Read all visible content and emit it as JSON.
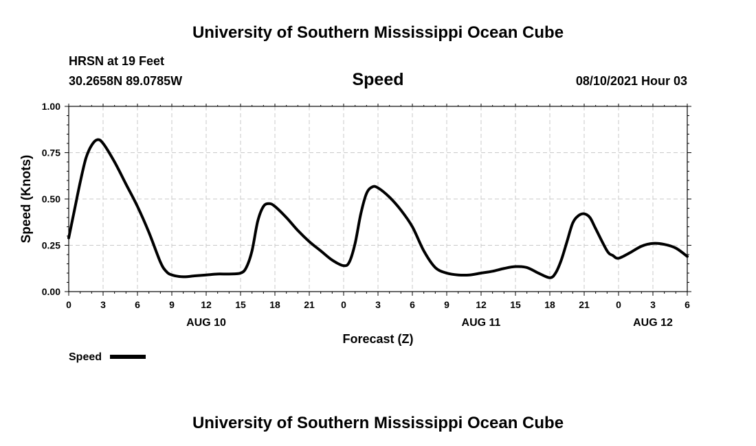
{
  "header": {
    "title": "University of Southern Mississippi Ocean Cube",
    "station": "HRSN at 19 Feet",
    "coords": "30.2658N  89.0785W",
    "timestamp": "08/10/2021 Hour 03"
  },
  "footer": {
    "title": "University of Southern Mississippi Ocean Cube"
  },
  "chart_data": {
    "type": "line",
    "title": "Speed",
    "xlabel": "Forecast (Z)",
    "ylabel": "Speed (Knots)",
    "x_unit": "forecast hour (Z), starting 08/10/2021 00Z",
    "xlim": [
      0,
      54
    ],
    "ylim": [
      0,
      1.0
    ],
    "grid": true,
    "xticks": [
      {
        "x": 0,
        "label": "0"
      },
      {
        "x": 3,
        "label": "3"
      },
      {
        "x": 6,
        "label": "6"
      },
      {
        "x": 9,
        "label": "9"
      },
      {
        "x": 12,
        "label": "12"
      },
      {
        "x": 15,
        "label": "15"
      },
      {
        "x": 18,
        "label": "18"
      },
      {
        "x": 21,
        "label": "21"
      },
      {
        "x": 24,
        "label": "0"
      },
      {
        "x": 27,
        "label": "3"
      },
      {
        "x": 30,
        "label": "6"
      },
      {
        "x": 33,
        "label": "9"
      },
      {
        "x": 36,
        "label": "12"
      },
      {
        "x": 39,
        "label": "15"
      },
      {
        "x": 42,
        "label": "18"
      },
      {
        "x": 45,
        "label": "21"
      },
      {
        "x": 48,
        "label": "0"
      },
      {
        "x": 51,
        "label": "3"
      },
      {
        "x": 54,
        "label": "6"
      }
    ],
    "yticks": [
      {
        "y": 0.0,
        "label": "0.00"
      },
      {
        "y": 0.25,
        "label": "0.25"
      },
      {
        "y": 0.5,
        "label": "0.50"
      },
      {
        "y": 0.75,
        "label": "0.75"
      },
      {
        "y": 1.0,
        "label": "1.00"
      }
    ],
    "date_labels": [
      {
        "x": 12,
        "label": "AUG 10"
      },
      {
        "x": 36,
        "label": "AUG 11"
      },
      {
        "x": 51,
        "label": "AUG 12"
      }
    ],
    "legend_position": "bottom-left",
    "series": [
      {
        "name": "Speed",
        "color": "#000000",
        "x": [
          0,
          0.5,
          1,
          1.5,
          2,
          2.5,
          3,
          4,
          5,
          6,
          7,
          8,
          8.5,
          9,
          10,
          11,
          12,
          13,
          14,
          15,
          15.5,
          16,
          16.5,
          17,
          17.5,
          18,
          19,
          20,
          21,
          22,
          23,
          24,
          24.5,
          25,
          25.5,
          26,
          26.5,
          27,
          28,
          29,
          30,
          31,
          32,
          33,
          34,
          35,
          36,
          37,
          38,
          39,
          40,
          41,
          42,
          42.5,
          43,
          43.5,
          44,
          44.5,
          45,
          45.5,
          46,
          47,
          47.5,
          48,
          49,
          50,
          51,
          52,
          53,
          54
        ],
        "values": [
          0.29,
          0.44,
          0.59,
          0.72,
          0.79,
          0.82,
          0.8,
          0.7,
          0.58,
          0.46,
          0.32,
          0.16,
          0.11,
          0.09,
          0.08,
          0.085,
          0.09,
          0.095,
          0.095,
          0.1,
          0.13,
          0.22,
          0.38,
          0.46,
          0.475,
          0.46,
          0.4,
          0.33,
          0.27,
          0.22,
          0.17,
          0.14,
          0.16,
          0.26,
          0.42,
          0.53,
          0.565,
          0.56,
          0.51,
          0.44,
          0.35,
          0.22,
          0.13,
          0.1,
          0.09,
          0.09,
          0.1,
          0.11,
          0.125,
          0.135,
          0.13,
          0.1,
          0.075,
          0.1,
          0.17,
          0.27,
          0.37,
          0.41,
          0.42,
          0.4,
          0.34,
          0.22,
          0.195,
          0.18,
          0.21,
          0.245,
          0.26,
          0.255,
          0.235,
          0.19
        ]
      }
    ]
  }
}
